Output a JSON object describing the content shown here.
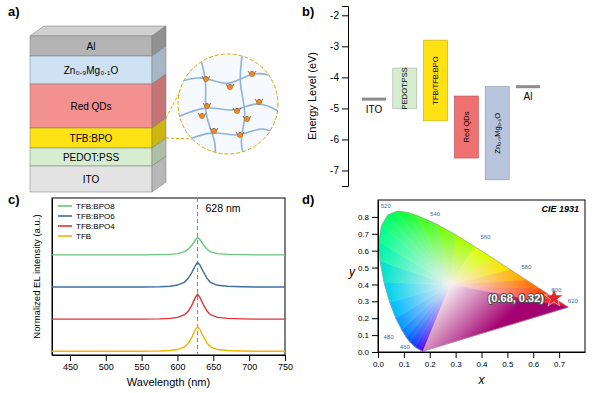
{
  "schematic": {
    "label": "a)",
    "layers": [
      "Al",
      "Zn₀.₉Mg₀.₁O",
      "Red QDs",
      "TFB:BPO",
      "PEDOT:PSS",
      "ITO"
    ]
  },
  "chart_data": [
    {
      "type": "floating_bar",
      "panel_label": "b)",
      "ylabel": "Energy Level (eV)",
      "categories": [
        "ITO",
        "PEDOT:PSS",
        "TFB/TFB:BPO",
        "Red QDs",
        "Zn₀.₉Mg₀.₁O",
        "Al"
      ],
      "top": [
        -4.7,
        -3.7,
        -2.8,
        -4.6,
        -4.3,
        -4.3
      ],
      "bottom": [
        -4.7,
        -5.0,
        -5.4,
        -6.6,
        -7.3,
        -4.3
      ],
      "colors": [
        "#8c8c8c",
        "#d6edcf",
        "#ffe214",
        "#ef7070",
        "#b9c4dd",
        "#8c8c8c"
      ],
      "ylim": [
        -7.5,
        -1.7
      ],
      "yticks": [
        -2,
        -3,
        -4,
        -5,
        -6,
        -7
      ],
      "tick_labels": "y"
    },
    {
      "type": "line",
      "panel_label": "c)",
      "xlabel": "Wavelength (nm)",
      "ylabel": "Normalized EL intensity (a.u.)",
      "x": [
        425,
        450,
        475,
        500,
        525,
        550,
        575,
        590,
        600,
        610,
        615,
        620,
        625,
        628,
        631,
        636,
        641,
        646,
        656,
        670,
        690,
        710,
        730,
        750
      ],
      "series": [
        {
          "name": "TFB:BPO8",
          "color": "#6cc47c",
          "values": [
            3.9,
            3.9,
            3.9,
            3.9,
            3.9,
            3.9,
            3.91,
            3.92,
            3.95,
            4.03,
            4.13,
            4.29,
            4.5,
            4.6,
            4.53,
            4.32,
            4.14,
            4.02,
            3.95,
            3.92,
            3.91,
            3.9,
            3.9,
            3.9
          ]
        },
        {
          "name": "TFB:BPO6",
          "color": "#3e6f9f",
          "values": [
            2.6,
            2.6,
            2.6,
            2.6,
            2.6,
            2.6,
            2.61,
            2.63,
            2.68,
            2.8,
            2.95,
            3.18,
            3.47,
            3.6,
            3.5,
            3.22,
            2.96,
            2.79,
            2.67,
            2.63,
            2.61,
            2.6,
            2.6,
            2.6
          ]
        },
        {
          "name": "TFB:BPO4",
          "color": "#dd3535",
          "values": [
            1.3,
            1.3,
            1.3,
            1.3,
            1.3,
            1.3,
            1.31,
            1.33,
            1.37,
            1.48,
            1.62,
            1.86,
            2.18,
            2.3,
            2.2,
            1.9,
            1.64,
            1.48,
            1.37,
            1.33,
            1.31,
            1.3,
            1.3,
            1.3
          ]
        },
        {
          "name": "TFB",
          "color": "#f5b400",
          "values": [
            0,
            0,
            0,
            0,
            0,
            0,
            0.01,
            0.03,
            0.07,
            0.18,
            0.32,
            0.56,
            0.88,
            1,
            0.9,
            0.6,
            0.34,
            0.18,
            0.07,
            0.03,
            0.01,
            0,
            0,
            0
          ]
        }
      ],
      "xlim": [
        425,
        750
      ],
      "xticks": [
        450,
        500,
        550,
        600,
        650,
        700,
        750
      ],
      "ylim": [
        -0.15,
        6.2
      ],
      "tick_labels": "x",
      "legend": "upper left",
      "annotations": [
        {
          "x": 628,
          "text": "628 nm"
        }
      ]
    },
    {
      "type": "scatter",
      "panel_label": "d)",
      "title": "CIE 1931",
      "xlabel": "x",
      "ylabel": "y",
      "locus": {
        "wavelength": [
          380,
          440,
          450,
          460,
          470,
          475,
          480,
          485,
          490,
          495,
          500,
          505,
          510,
          515,
          520,
          525,
          530,
          540,
          550,
          560,
          570,
          580,
          590,
          600,
          610,
          620,
          640,
          700
        ],
        "x": [
          0.1741,
          0.1644,
          0.1566,
          0.144,
          0.1241,
          0.1096,
          0.0913,
          0.0687,
          0.0454,
          0.0235,
          0.0082,
          0.0039,
          0.0139,
          0.0389,
          0.0743,
          0.1142,
          0.1547,
          0.2296,
          0.3016,
          0.3731,
          0.4441,
          0.5125,
          0.5752,
          0.627,
          0.6658,
          0.6915,
          0.719,
          0.7347
        ],
        "y": [
          0.005,
          0.0109,
          0.0177,
          0.0297,
          0.0578,
          0.0868,
          0.1327,
          0.2007,
          0.295,
          0.4127,
          0.5384,
          0.6548,
          0.7502,
          0.812,
          0.8338,
          0.8262,
          0.8059,
          0.7543,
          0.6923,
          0.6245,
          0.5547,
          0.4866,
          0.4242,
          0.3725,
          0.334,
          0.3083,
          0.2809,
          0.2653
        ]
      },
      "locus_labels": [
        460,
        480,
        520,
        540,
        560,
        580,
        600,
        620
      ],
      "points": {
        "x": [
          0.68
        ],
        "y": [
          0.32
        ],
        "labels": [
          "(0.68, 0.32)"
        ],
        "color": "#e8202a",
        "marker": "star"
      },
      "xlim": [
        0,
        0.8
      ],
      "xticks": [
        {
          "value": 0,
          "label": "0.0"
        },
        0.1,
        0.2,
        0.3,
        0.4,
        0.5,
        0.6,
        0.7
      ],
      "ylim": [
        0,
        0.9
      ],
      "yticks": [
        {
          "value": 0,
          "label": "0.0"
        },
        0.1,
        0.2,
        0.3,
        0.4,
        0.5,
        0.6,
        0.7,
        0.8
      ]
    }
  ]
}
